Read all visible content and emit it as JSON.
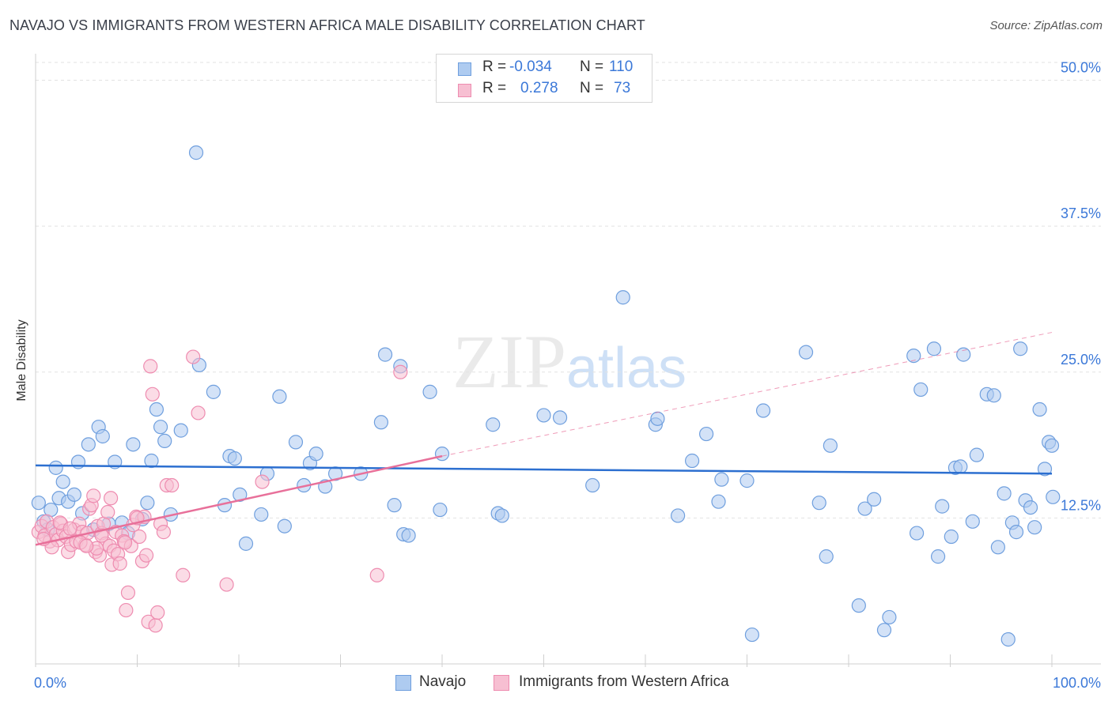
{
  "title": "NAVAJO VS IMMIGRANTS FROM WESTERN AFRICA MALE DISABILITY CORRELATION CHART",
  "source": "Source: ZipAtlas.com",
  "stats": {
    "navajo": {
      "r_label": "R =",
      "r_value": "-0.034",
      "n_label": "N =",
      "n_value": "110"
    },
    "immigrants": {
      "r_label": "R =",
      "r_value": "0.278",
      "n_label": "N =",
      "n_value": "73"
    }
  },
  "legend": {
    "navajo": "Navajo",
    "immigrants": "Immigrants from Western Africa"
  },
  "colors": {
    "navajo_fill": "#aecbf0",
    "navajo_stroke": "#6f9fde",
    "navajo_line": "#2c6fd0",
    "immigrants_fill": "#f7bfd2",
    "immigrants_stroke": "#ee8cb0",
    "immigrants_line": "#e8709a",
    "axis_text": "#3b78d8",
    "grid": "#e2e2e2"
  },
  "chart_data": {
    "type": "scatter",
    "title": "NAVAJO VS IMMIGRANTS FROM WESTERN AFRICA MALE DISABILITY CORRELATION CHART",
    "xlabel": "",
    "ylabel": "Male Disability",
    "xlim": [
      0,
      100
    ],
    "ylim": [
      0,
      52
    ],
    "x_tick_labels": [
      "0.0%",
      "100.0%"
    ],
    "y_ticks": [
      12.5,
      25.0,
      37.5,
      50.0
    ],
    "y_tick_labels": [
      "12.5%",
      "25.0%",
      "37.5%",
      "50.0%"
    ],
    "grid": true,
    "legend_position": "bottom-center",
    "watermark": "ZIPatlas",
    "series": [
      {
        "name": "Navajo",
        "r": -0.034,
        "n": 110,
        "trend": {
          "x": [
            0,
            100
          ],
          "y": [
            17.0,
            16.3
          ]
        },
        "points": [
          [
            0.3,
            13.8
          ],
          [
            0.8,
            12.2
          ],
          [
            1.2,
            11.5
          ],
          [
            1.5,
            13.2
          ],
          [
            2.0,
            16.8
          ],
          [
            2.3,
            14.2
          ],
          [
            2.7,
            15.6
          ],
          [
            3.2,
            13.9
          ],
          [
            3.8,
            14.5
          ],
          [
            4.2,
            17.3
          ],
          [
            4.6,
            12.9
          ],
          [
            5.2,
            18.8
          ],
          [
            5.7,
            11.5
          ],
          [
            6.2,
            20.3
          ],
          [
            6.6,
            19.5
          ],
          [
            7.2,
            12.0
          ],
          [
            7.8,
            17.3
          ],
          [
            8.5,
            12.1
          ],
          [
            9.1,
            11.2
          ],
          [
            9.6,
            18.8
          ],
          [
            10.5,
            12.4
          ],
          [
            11.0,
            13.8
          ],
          [
            11.4,
            17.4
          ],
          [
            11.9,
            21.8
          ],
          [
            12.3,
            20.3
          ],
          [
            12.7,
            19.1
          ],
          [
            13.3,
            12.8
          ],
          [
            14.3,
            20.0
          ],
          [
            15.8,
            43.8
          ],
          [
            16.1,
            25.6
          ],
          [
            17.5,
            23.3
          ],
          [
            18.6,
            13.6
          ],
          [
            19.1,
            17.8
          ],
          [
            19.6,
            17.6
          ],
          [
            20.1,
            14.5
          ],
          [
            20.7,
            10.3
          ],
          [
            22.2,
            12.8
          ],
          [
            22.8,
            16.3
          ],
          [
            24.0,
            22.9
          ],
          [
            24.5,
            11.8
          ],
          [
            25.6,
            19.0
          ],
          [
            26.4,
            15.3
          ],
          [
            27.0,
            17.2
          ],
          [
            27.6,
            18.0
          ],
          [
            28.5,
            15.2
          ],
          [
            29.5,
            16.3
          ],
          [
            32.0,
            16.3
          ],
          [
            34.0,
            20.7
          ],
          [
            34.4,
            26.5
          ],
          [
            35.3,
            13.6
          ],
          [
            35.9,
            25.5
          ],
          [
            36.2,
            11.1
          ],
          [
            36.7,
            11.0
          ],
          [
            38.8,
            23.3
          ],
          [
            39.8,
            13.2
          ],
          [
            40.0,
            18.0
          ],
          [
            45.0,
            20.5
          ],
          [
            45.5,
            12.9
          ],
          [
            45.9,
            12.7
          ],
          [
            50.0,
            21.3
          ],
          [
            51.6,
            21.1
          ],
          [
            54.8,
            15.3
          ],
          [
            57.8,
            31.4
          ],
          [
            61.0,
            20.5
          ],
          [
            61.2,
            21.0
          ],
          [
            63.2,
            12.7
          ],
          [
            64.6,
            17.4
          ],
          [
            66.0,
            19.7
          ],
          [
            67.2,
            13.9
          ],
          [
            67.5,
            15.8
          ],
          [
            70.0,
            15.7
          ],
          [
            71.6,
            21.7
          ],
          [
            75.8,
            26.7
          ],
          [
            77.1,
            13.8
          ],
          [
            77.8,
            9.2
          ],
          [
            78.2,
            18.7
          ],
          [
            81.0,
            5.0
          ],
          [
            81.6,
            13.3
          ],
          [
            82.5,
            14.1
          ],
          [
            84.0,
            4.0
          ],
          [
            86.4,
            26.4
          ],
          [
            86.7,
            11.2
          ],
          [
            87.1,
            23.5
          ],
          [
            88.4,
            27.0
          ],
          [
            88.8,
            9.2
          ],
          [
            89.2,
            13.5
          ],
          [
            90.1,
            10.9
          ],
          [
            90.5,
            16.8
          ],
          [
            91.0,
            16.9
          ],
          [
            91.3,
            26.5
          ],
          [
            92.2,
            12.2
          ],
          [
            92.6,
            17.9
          ],
          [
            93.6,
            23.1
          ],
          [
            94.3,
            23.0
          ],
          [
            94.7,
            10.0
          ],
          [
            95.3,
            14.6
          ],
          [
            95.7,
            2.1
          ],
          [
            96.1,
            12.1
          ],
          [
            96.5,
            11.3
          ],
          [
            96.9,
            27.0
          ],
          [
            97.4,
            14.0
          ],
          [
            97.9,
            13.4
          ],
          [
            98.3,
            11.7
          ],
          [
            98.8,
            21.8
          ],
          [
            99.3,
            16.7
          ],
          [
            99.7,
            19.0
          ],
          [
            100.0,
            18.7
          ],
          [
            100.1,
            14.3
          ],
          [
            70.5,
            2.5
          ],
          [
            83.5,
            2.9
          ]
        ]
      },
      {
        "name": "Immigrants from Western Africa",
        "r": 0.278,
        "n": 73,
        "trend": {
          "x": [
            0,
            40
          ],
          "y": [
            10.2,
            17.8
          ]
        },
        "trend_extended": {
          "x": [
            40,
            100
          ],
          "y": [
            17.8,
            28.4
          ]
        },
        "points": [
          [
            0.3,
            11.3
          ],
          [
            0.6,
            11.8
          ],
          [
            0.9,
            11.0
          ],
          [
            1.1,
            12.2
          ],
          [
            1.4,
            10.5
          ],
          [
            1.7,
            11.7
          ],
          [
            2.0,
            11.1
          ],
          [
            2.2,
            10.6
          ],
          [
            2.5,
            12.0
          ],
          [
            2.7,
            11.4
          ],
          [
            3.0,
            10.9
          ],
          [
            3.2,
            9.6
          ],
          [
            3.5,
            10.2
          ],
          [
            3.8,
            11.5
          ],
          [
            4.0,
            10.5
          ],
          [
            4.3,
            12.0
          ],
          [
            4.6,
            11.3
          ],
          [
            4.9,
            10.2
          ],
          [
            5.1,
            11.2
          ],
          [
            5.3,
            13.3
          ],
          [
            5.5,
            13.6
          ],
          [
            5.7,
            14.4
          ],
          [
            5.9,
            9.6
          ],
          [
            6.1,
            11.8
          ],
          [
            6.3,
            9.3
          ],
          [
            6.5,
            11.2
          ],
          [
            6.7,
            12.0
          ],
          [
            6.9,
            10.3
          ],
          [
            7.1,
            13.0
          ],
          [
            7.3,
            10.1
          ],
          [
            7.5,
            8.5
          ],
          [
            7.7,
            9.7
          ],
          [
            7.9,
            11.3
          ],
          [
            8.1,
            9.4
          ],
          [
            8.3,
            8.6
          ],
          [
            8.5,
            11.0
          ],
          [
            8.7,
            10.5
          ],
          [
            8.9,
            4.6
          ],
          [
            9.1,
            6.1
          ],
          [
            9.4,
            10.1
          ],
          [
            9.6,
            11.9
          ],
          [
            9.9,
            12.6
          ],
          [
            10.2,
            10.9
          ],
          [
            10.5,
            8.8
          ],
          [
            10.7,
            12.6
          ],
          [
            10.9,
            9.3
          ],
          [
            11.1,
            3.6
          ],
          [
            11.3,
            25.5
          ],
          [
            11.5,
            23.1
          ],
          [
            11.8,
            3.3
          ],
          [
            12.0,
            4.4
          ],
          [
            12.3,
            12.0
          ],
          [
            12.6,
            11.3
          ],
          [
            12.9,
            15.3
          ],
          [
            13.4,
            15.3
          ],
          [
            14.5,
            7.6
          ],
          [
            15.5,
            26.3
          ],
          [
            16.0,
            21.5
          ],
          [
            18.8,
            6.8
          ],
          [
            22.3,
            15.6
          ],
          [
            33.6,
            7.6
          ],
          [
            35.9,
            25.0
          ],
          [
            1.6,
            10.0
          ],
          [
            2.4,
            12.1
          ],
          [
            4.4,
            10.4
          ],
          [
            6.0,
            9.9
          ],
          [
            7.4,
            14.2
          ],
          [
            8.8,
            10.4
          ],
          [
            10.0,
            12.5
          ],
          [
            6.5,
            11.0
          ],
          [
            3.4,
            11.6
          ],
          [
            0.8,
            10.7
          ],
          [
            5.0,
            10.1
          ]
        ]
      }
    ]
  }
}
